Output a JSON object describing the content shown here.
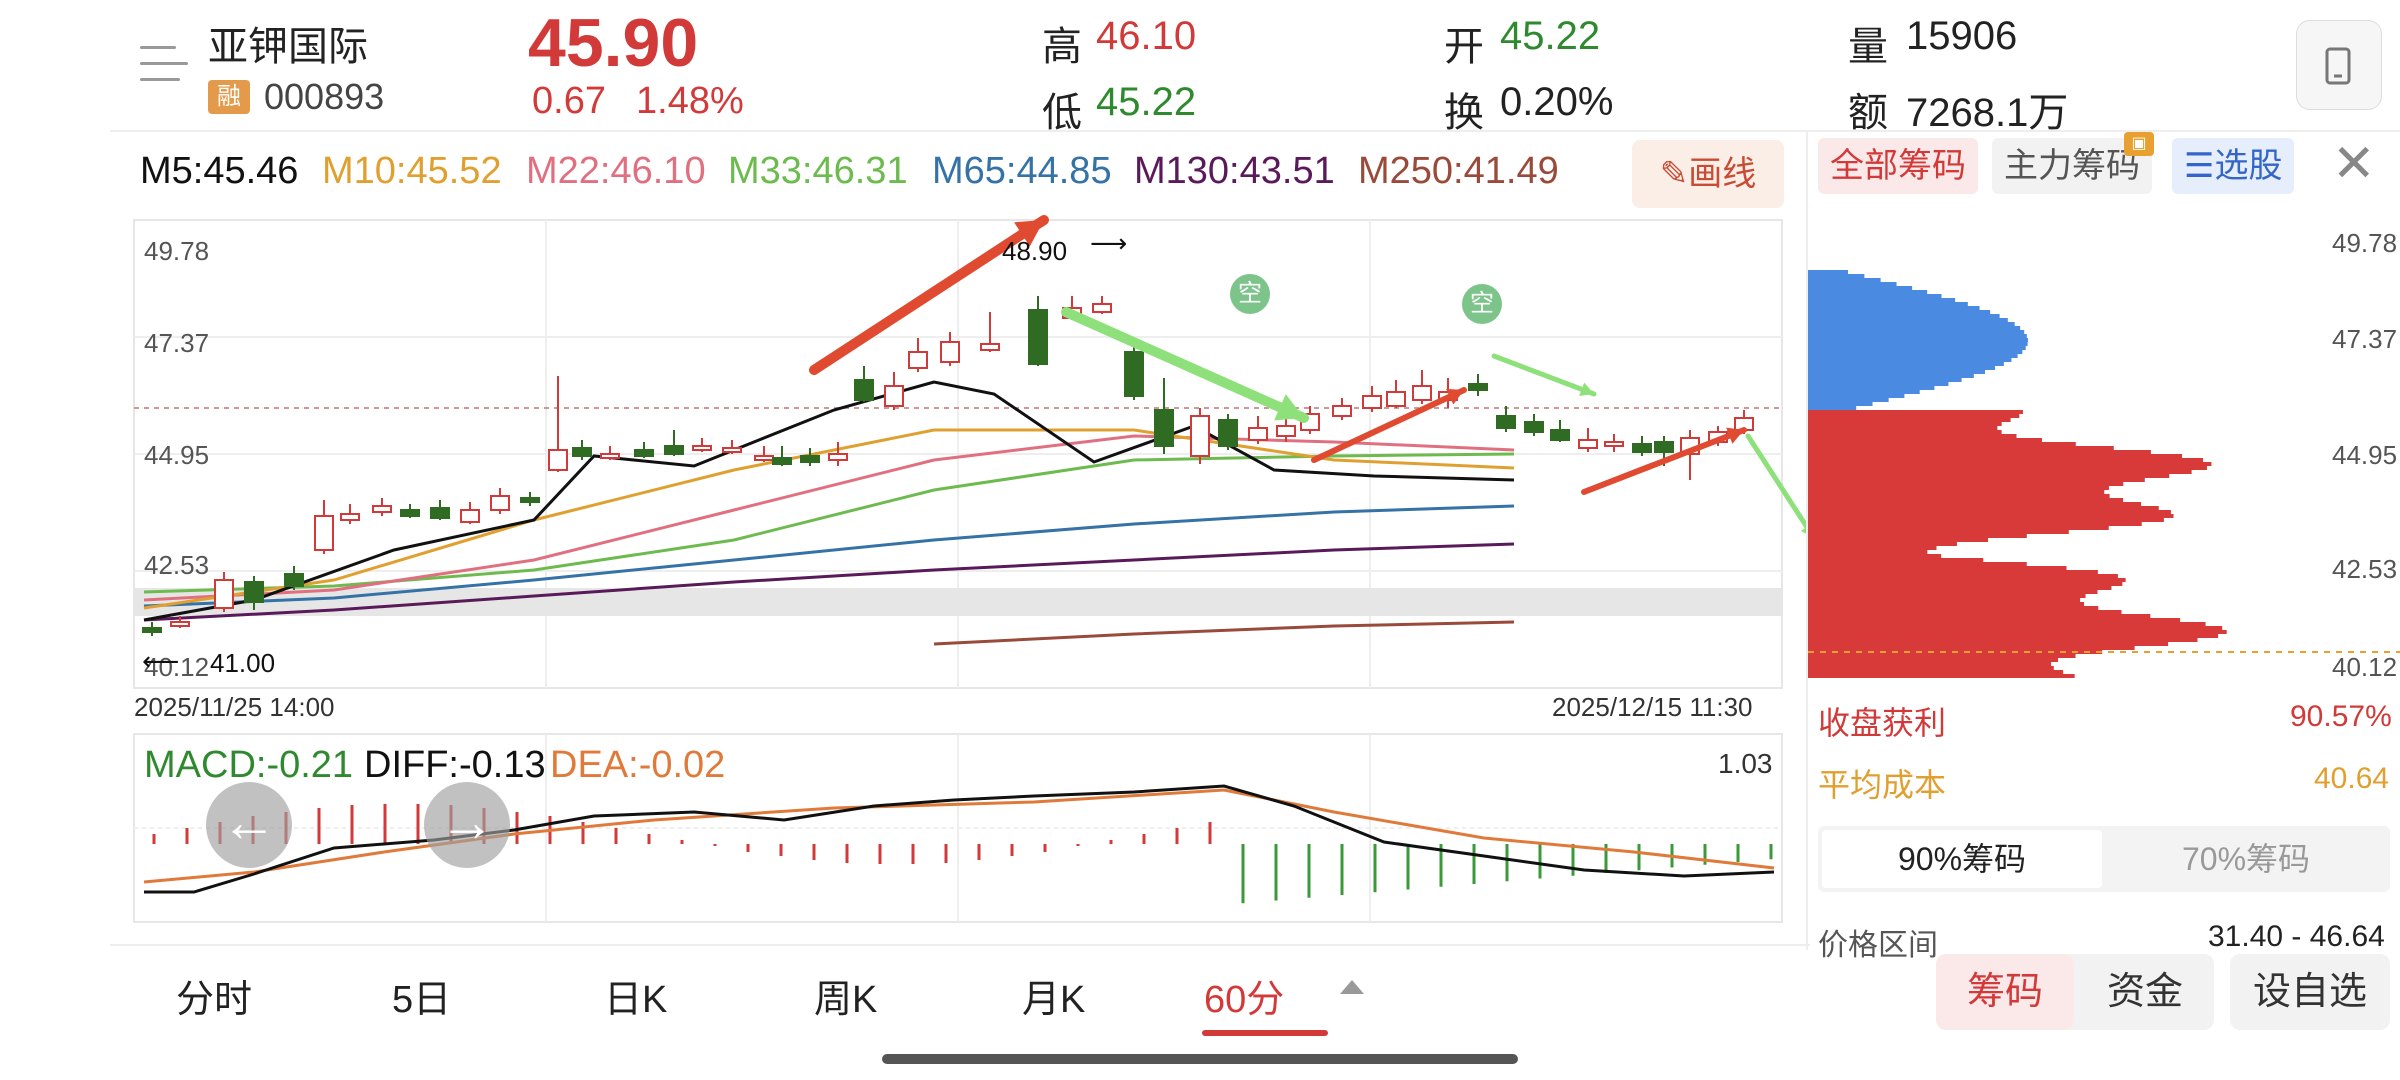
{
  "header": {
    "stock_name": "亚钾国际",
    "margin_badge": "融",
    "stock_code": "000893",
    "price": "45.90",
    "change": "0.67",
    "change_pct": "1.48%",
    "high_label": "高",
    "high_value": "46.10",
    "low_label": "低",
    "low_value": "45.22",
    "open_label": "开",
    "open_value": "45.22",
    "turnover_label": "换",
    "turnover_value": "0.20%",
    "volume_label": "量",
    "volume_value": "15906",
    "amount_label": "额",
    "amount_value": "7268.1万"
  },
  "ma_legend": {
    "m5": "M5:45.46",
    "m10": "M10:45.52",
    "m22": "M22:46.10",
    "m33": "M33:46.31",
    "m65": "M65:44.85",
    "m130": "M130:43.51",
    "m250": "M250:41.49",
    "draw_button": "画线"
  },
  "price_chart": {
    "y_ticks": [
      "49.78",
      "47.37",
      "44.95",
      "42.53",
      "40.12"
    ],
    "high_annotation": "48.90",
    "low_annotation": "41.00",
    "start_time": "2025/11/25 14:00",
    "end_time": "2025/12/15 11:30",
    "signal_marker": "空"
  },
  "macd": {
    "macd": "MACD:-0.21",
    "diff": "DIFF:-0.13",
    "dea": "DEA:-0.02",
    "max_label": "1.03"
  },
  "right_panel": {
    "tab_all": "全部筹码",
    "tab_main": "主力筹码",
    "tab_select": "选股",
    "y_ticks": [
      "49.78",
      "47.37",
      "44.95",
      "42.53",
      "40.12"
    ],
    "profit_label": "收盘获利",
    "profit_value": "90.57%",
    "avg_cost_label": "平均成本",
    "avg_cost_value": "40.64",
    "chip90": "90%筹码",
    "chip70": "70%筹码",
    "range_label": "价格区间",
    "range_value": "31.40 - 46.64"
  },
  "footer": {
    "tabs": [
      "分时",
      "5日",
      "日K",
      "周K",
      "月K",
      "60分"
    ],
    "active_tab": "60分",
    "btn_chips": "筹码",
    "btn_funds": "资金",
    "btn_watch": "设自选"
  },
  "colors": {
    "up": "#d23a3a",
    "down": "#2f6b22",
    "m5": "#111111",
    "m10": "#e0a030",
    "m22": "#e07080",
    "m33": "#6dbb4f",
    "m65": "#3572a6",
    "m130": "#5a1a5a",
    "m250": "#9a4a3a"
  }
}
